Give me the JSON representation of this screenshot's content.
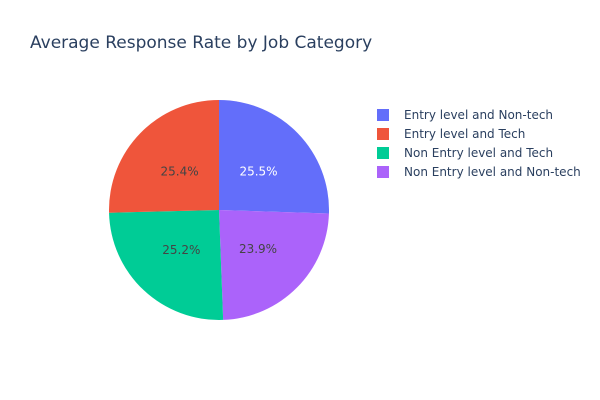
{
  "chart_data": {
    "type": "pie",
    "title": "Average Response Rate by Job Category",
    "slices": [
      {
        "label": "Entry level and Non-tech",
        "percent": 25.5,
        "color": "#636efa",
        "text_color": "#ffffff"
      },
      {
        "label": "Non Entry level and Non-tech",
        "percent": 23.9,
        "color": "#ab63fa",
        "text_color": "#444444"
      },
      {
        "label": "Non Entry level and Tech",
        "percent": 25.2,
        "color": "#00cc96",
        "text_color": "#444444"
      },
      {
        "label": "Entry level and Tech",
        "percent": 25.4,
        "color": "#ef553b",
        "text_color": "#444444"
      }
    ],
    "legend": [
      {
        "label": "Entry level and Non-tech",
        "color": "#636efa"
      },
      {
        "label": "Entry level and Tech",
        "color": "#ef553b"
      },
      {
        "label": "Non Entry level and Tech",
        "color": "#00cc96"
      },
      {
        "label": "Non Entry level and Non-tech",
        "color": "#ab63fa"
      }
    ],
    "legend_position": "top-right"
  }
}
